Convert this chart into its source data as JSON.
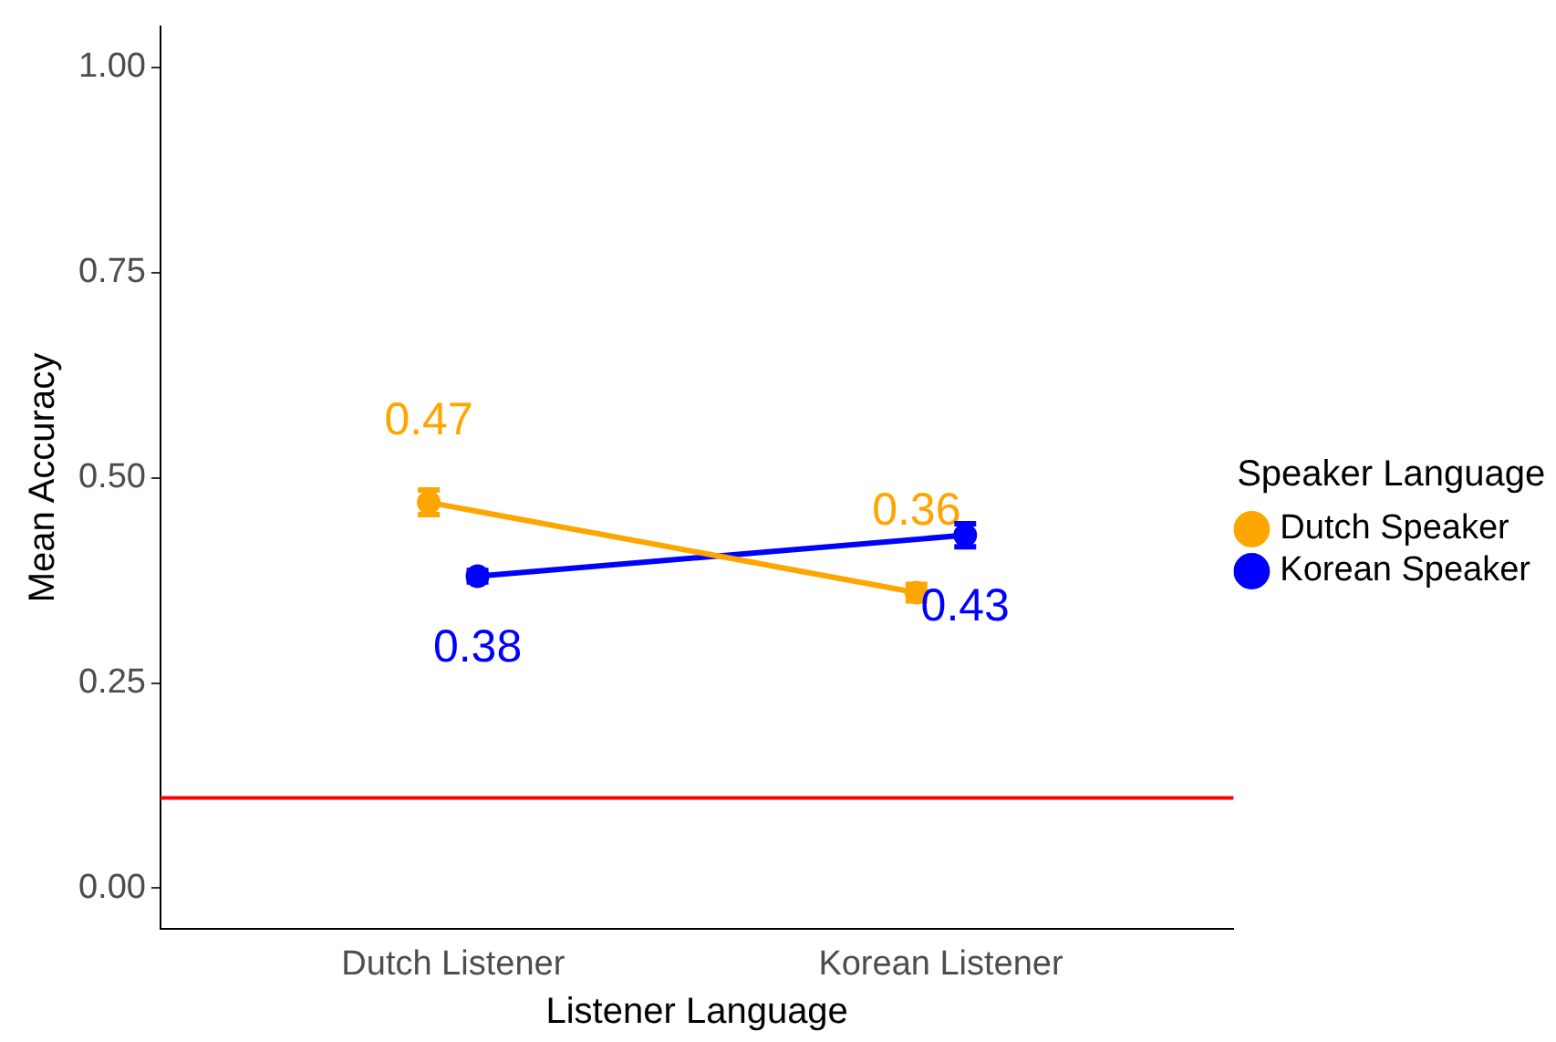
{
  "chart_data": {
    "type": "line",
    "xlabel": "Listener Language",
    "ylabel": "Mean Accuracy",
    "legend_title": "Speaker Language",
    "legend": "right",
    "grid": false,
    "marker": "circle",
    "data_labels": true,
    "categories": [
      "Dutch Listener",
      "Korean Listener"
    ],
    "series": [
      {
        "name": "Dutch Speaker",
        "color": "#ffa500",
        "values": [
          0.47,
          0.36
        ],
        "errors": [
          0.015,
          0.01
        ]
      },
      {
        "name": "Korean Speaker",
        "color": "#0000ff",
        "values": [
          0.38,
          0.43
        ],
        "errors": [
          0.007,
          0.014
        ]
      }
    ],
    "ylim": [
      -0.05,
      1.05
    ],
    "yticks": [
      {
        "value": 0,
        "label": "0.00"
      },
      {
        "value": 0.25,
        "label": "0.25"
      },
      {
        "value": 0.5,
        "label": "0.50"
      },
      {
        "value": 0.75,
        "label": "0.75"
      },
      {
        "value": 1,
        "label": "1.00"
      }
    ],
    "ref_lines": [
      {
        "axis": "y",
        "value": 0.11,
        "color": "#ff0000"
      }
    ]
  }
}
